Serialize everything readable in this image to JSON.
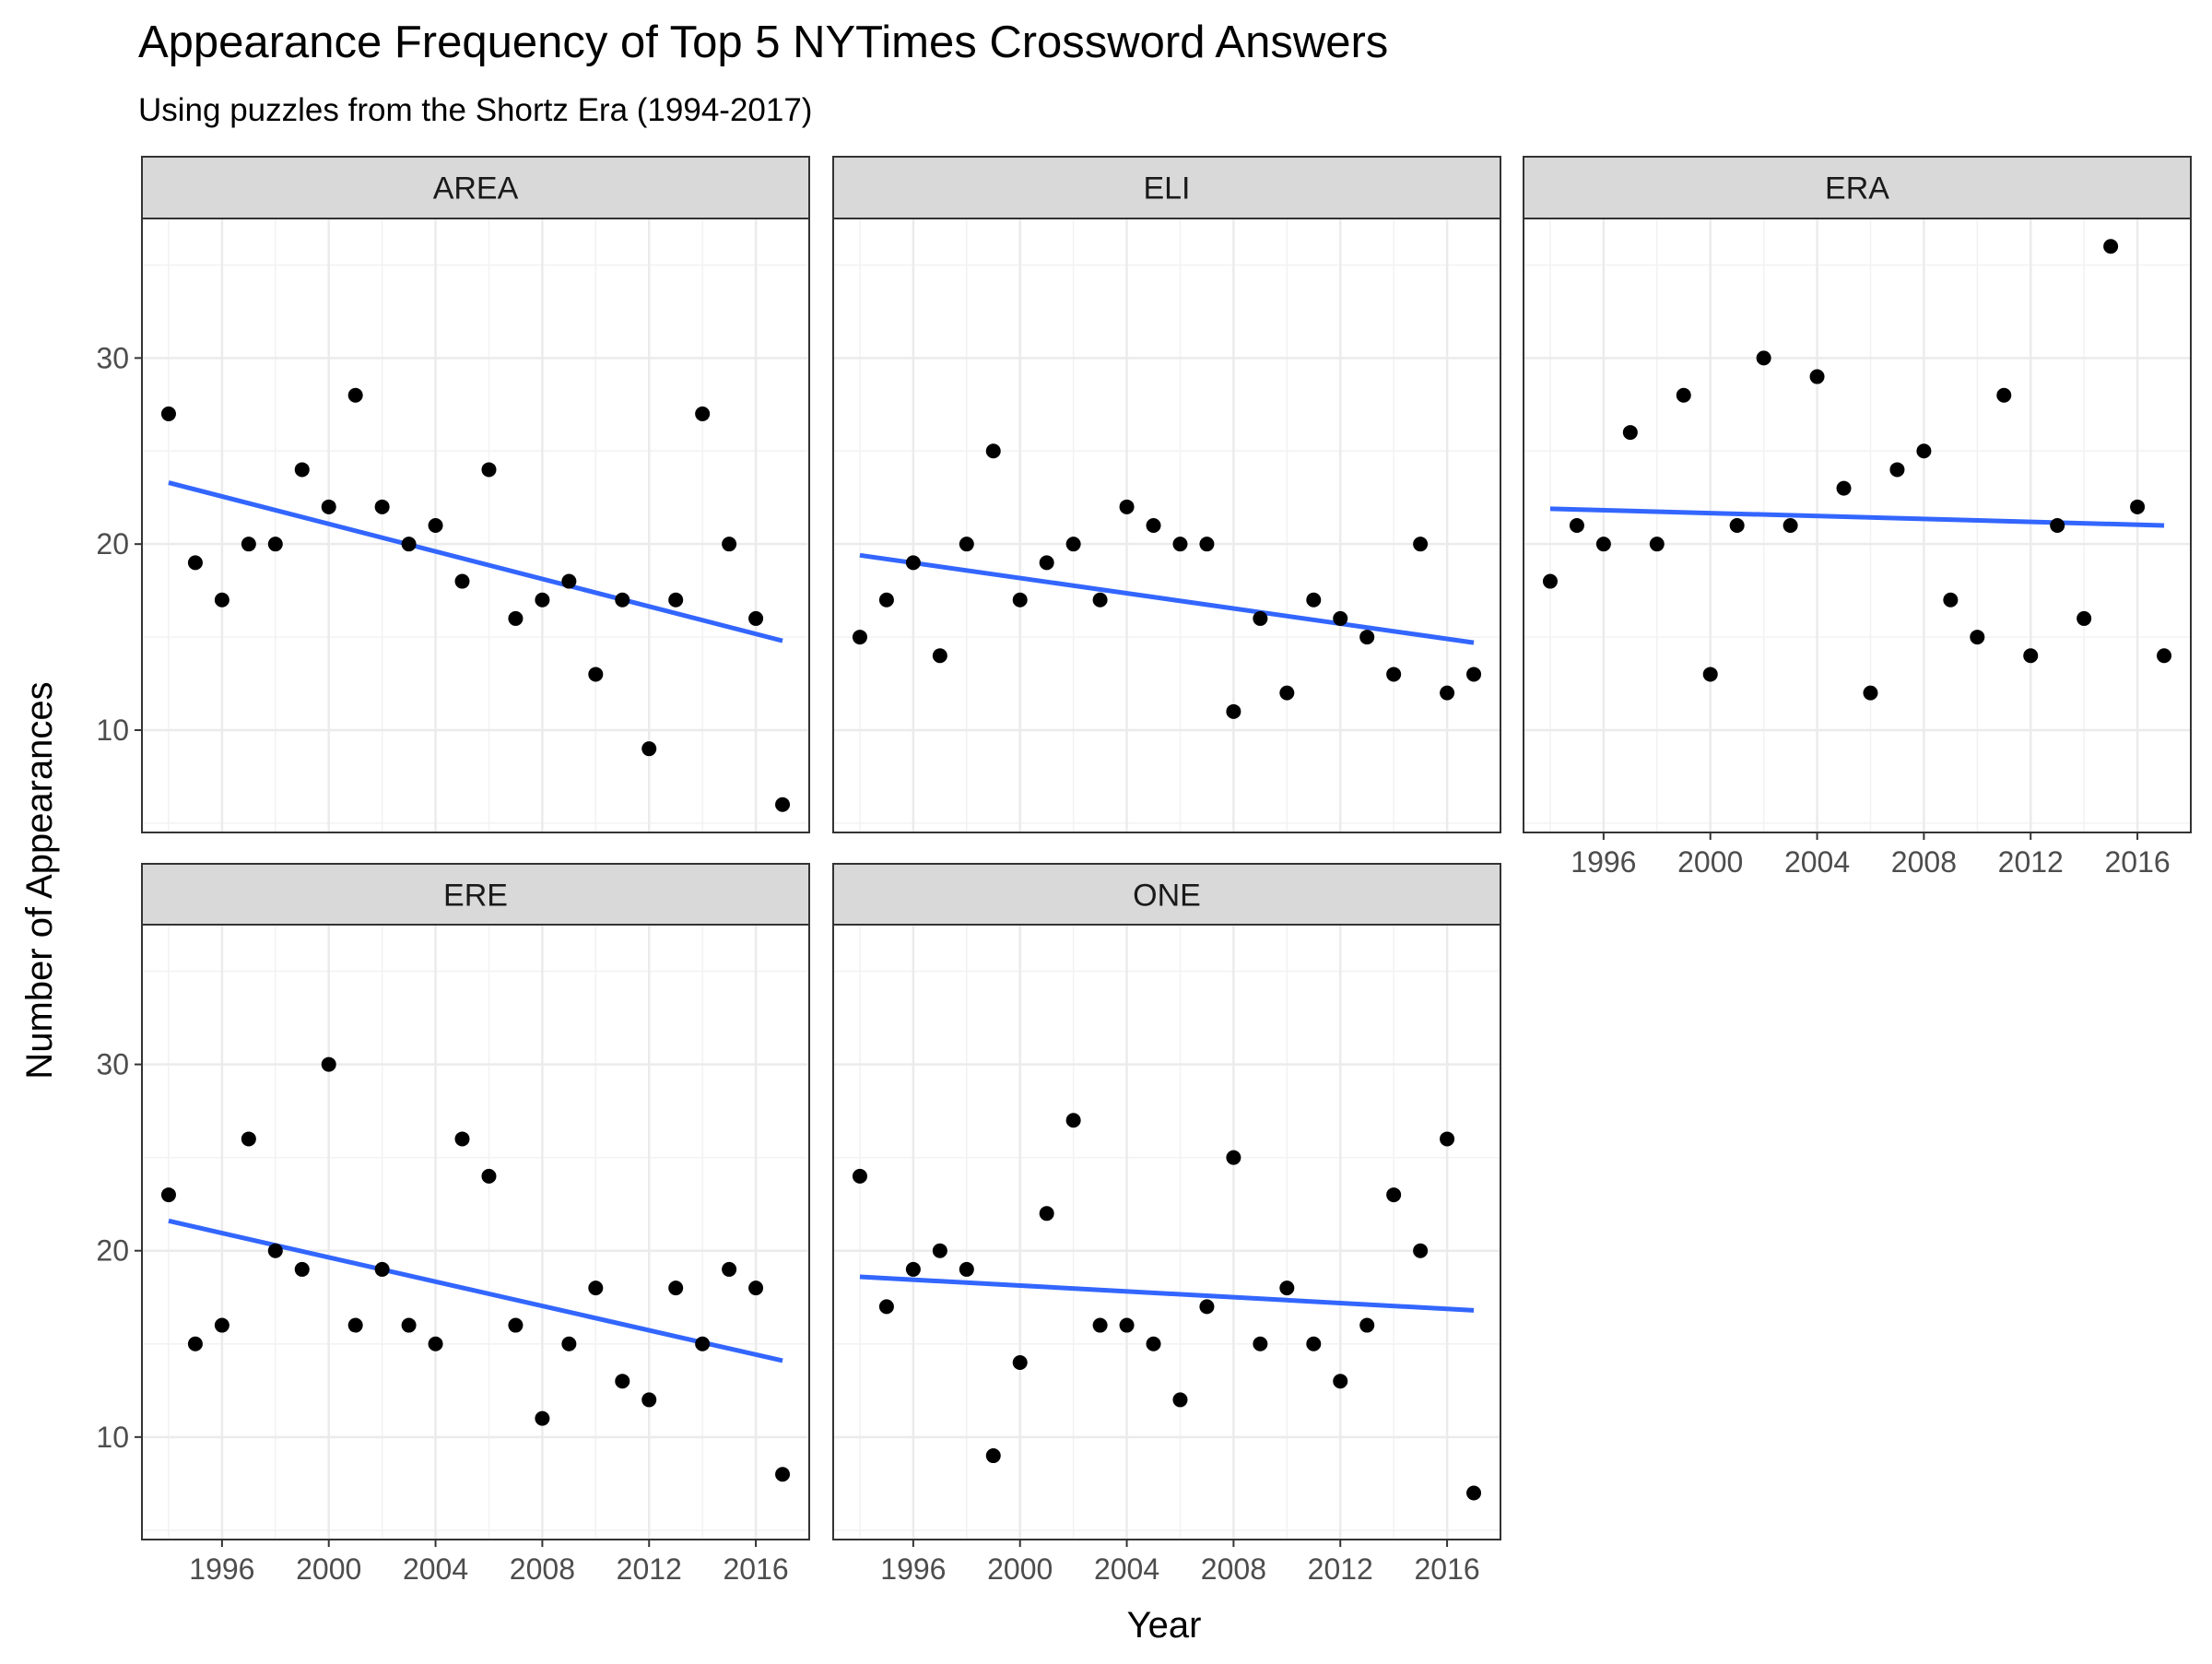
{
  "chart_data": {
    "type": "scatter",
    "title": "Appearance Frequency of Top 5 NYTimes Crossword Answers",
    "subtitle": "Using puzzles from the Shortz Era (1994-2017)",
    "xlabel": "Year",
    "ylabel": "Number of Appearances",
    "x": [
      1994,
      1995,
      1996,
      1997,
      1998,
      1999,
      2000,
      2001,
      2002,
      2003,
      2004,
      2005,
      2006,
      2007,
      2008,
      2009,
      2010,
      2011,
      2012,
      2013,
      2014,
      2015,
      2016,
      2017
    ],
    "xlim": [
      1993,
      2018
    ],
    "ylim": [
      4.5,
      37.5
    ],
    "x_ticks": [
      1996,
      2000,
      2004,
      2008,
      2012,
      2016
    ],
    "x_tick_labels": [
      "1996",
      "2000",
      "2004",
      "2008",
      "2012",
      "2016"
    ],
    "y_ticks": [
      10,
      20,
      30
    ],
    "y_tick_labels": [
      "10",
      "20",
      "30"
    ],
    "grid": true,
    "trend_line": "linear fit",
    "point_color": "#000000",
    "line_color": "#3366ff",
    "strip_color": "#d9d9d9",
    "facets": [
      {
        "name": "AREA",
        "values": [
          27,
          19,
          17,
          20,
          20,
          24,
          22,
          28,
          22,
          20,
          21,
          18,
          24,
          16,
          17,
          18,
          13,
          17,
          9,
          17,
          27,
          20,
          16,
          6
        ],
        "trend": [
          23.3,
          14.8
        ]
      },
      {
        "name": "ELI",
        "values": [
          15,
          17,
          19,
          14,
          20,
          25,
          17,
          19,
          20,
          17,
          22,
          21,
          20,
          20,
          11,
          16,
          12,
          17,
          16,
          15,
          13,
          20,
          12,
          13
        ],
        "trend": [
          19.4,
          14.7
        ]
      },
      {
        "name": "ERA",
        "values": [
          18,
          21,
          20,
          26,
          20,
          28,
          13,
          21,
          30,
          21,
          29,
          23,
          12,
          24,
          25,
          17,
          15,
          28,
          14,
          21,
          16,
          36,
          22,
          14
        ],
        "trend": [
          21.9,
          21.0
        ]
      },
      {
        "name": "ERE",
        "values": [
          23,
          15,
          16,
          26,
          20,
          19,
          30,
          16,
          19,
          16,
          15,
          26,
          24,
          16,
          11,
          15,
          18,
          13,
          12,
          18,
          15,
          19,
          18,
          8
        ],
        "trend": [
          21.6,
          14.1
        ]
      },
      {
        "name": "ONE",
        "values": [
          24,
          17,
          19,
          20,
          19,
          9,
          14,
          22,
          27,
          16,
          16,
          15,
          12,
          17,
          25,
          15,
          18,
          15,
          13,
          16,
          23,
          20,
          26,
          7
        ],
        "trend": [
          18.6,
          16.8
        ]
      }
    ]
  }
}
